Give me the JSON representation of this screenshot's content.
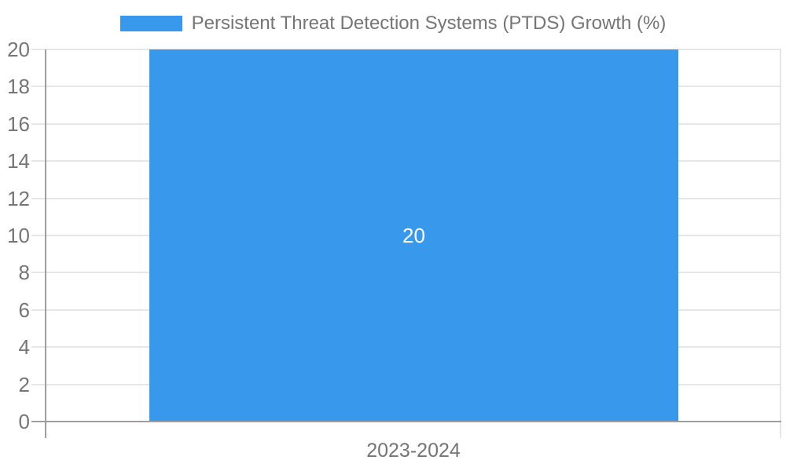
{
  "colors": {
    "bar": "#3899ec",
    "gridline": "#e6e6e6",
    "axis": "#9e9e9e",
    "text": "#757575",
    "bar_label": "#ffffff"
  },
  "chart_data": {
    "type": "bar",
    "title": "",
    "categories": [
      "2023-2024"
    ],
    "series": [
      {
        "name": "Persistent Threat Detection Systems (PTDS) Growth (%)",
        "values": [
          20
        ]
      }
    ],
    "data_labels": [
      "20"
    ],
    "xlabel": "",
    "ylabel": "",
    "ylim": [
      0,
      20
    ],
    "ytick_step": 2,
    "yticks": [
      0,
      2,
      4,
      6,
      8,
      10,
      12,
      14,
      16,
      18,
      20
    ],
    "grid": true,
    "legend_position": "top"
  }
}
